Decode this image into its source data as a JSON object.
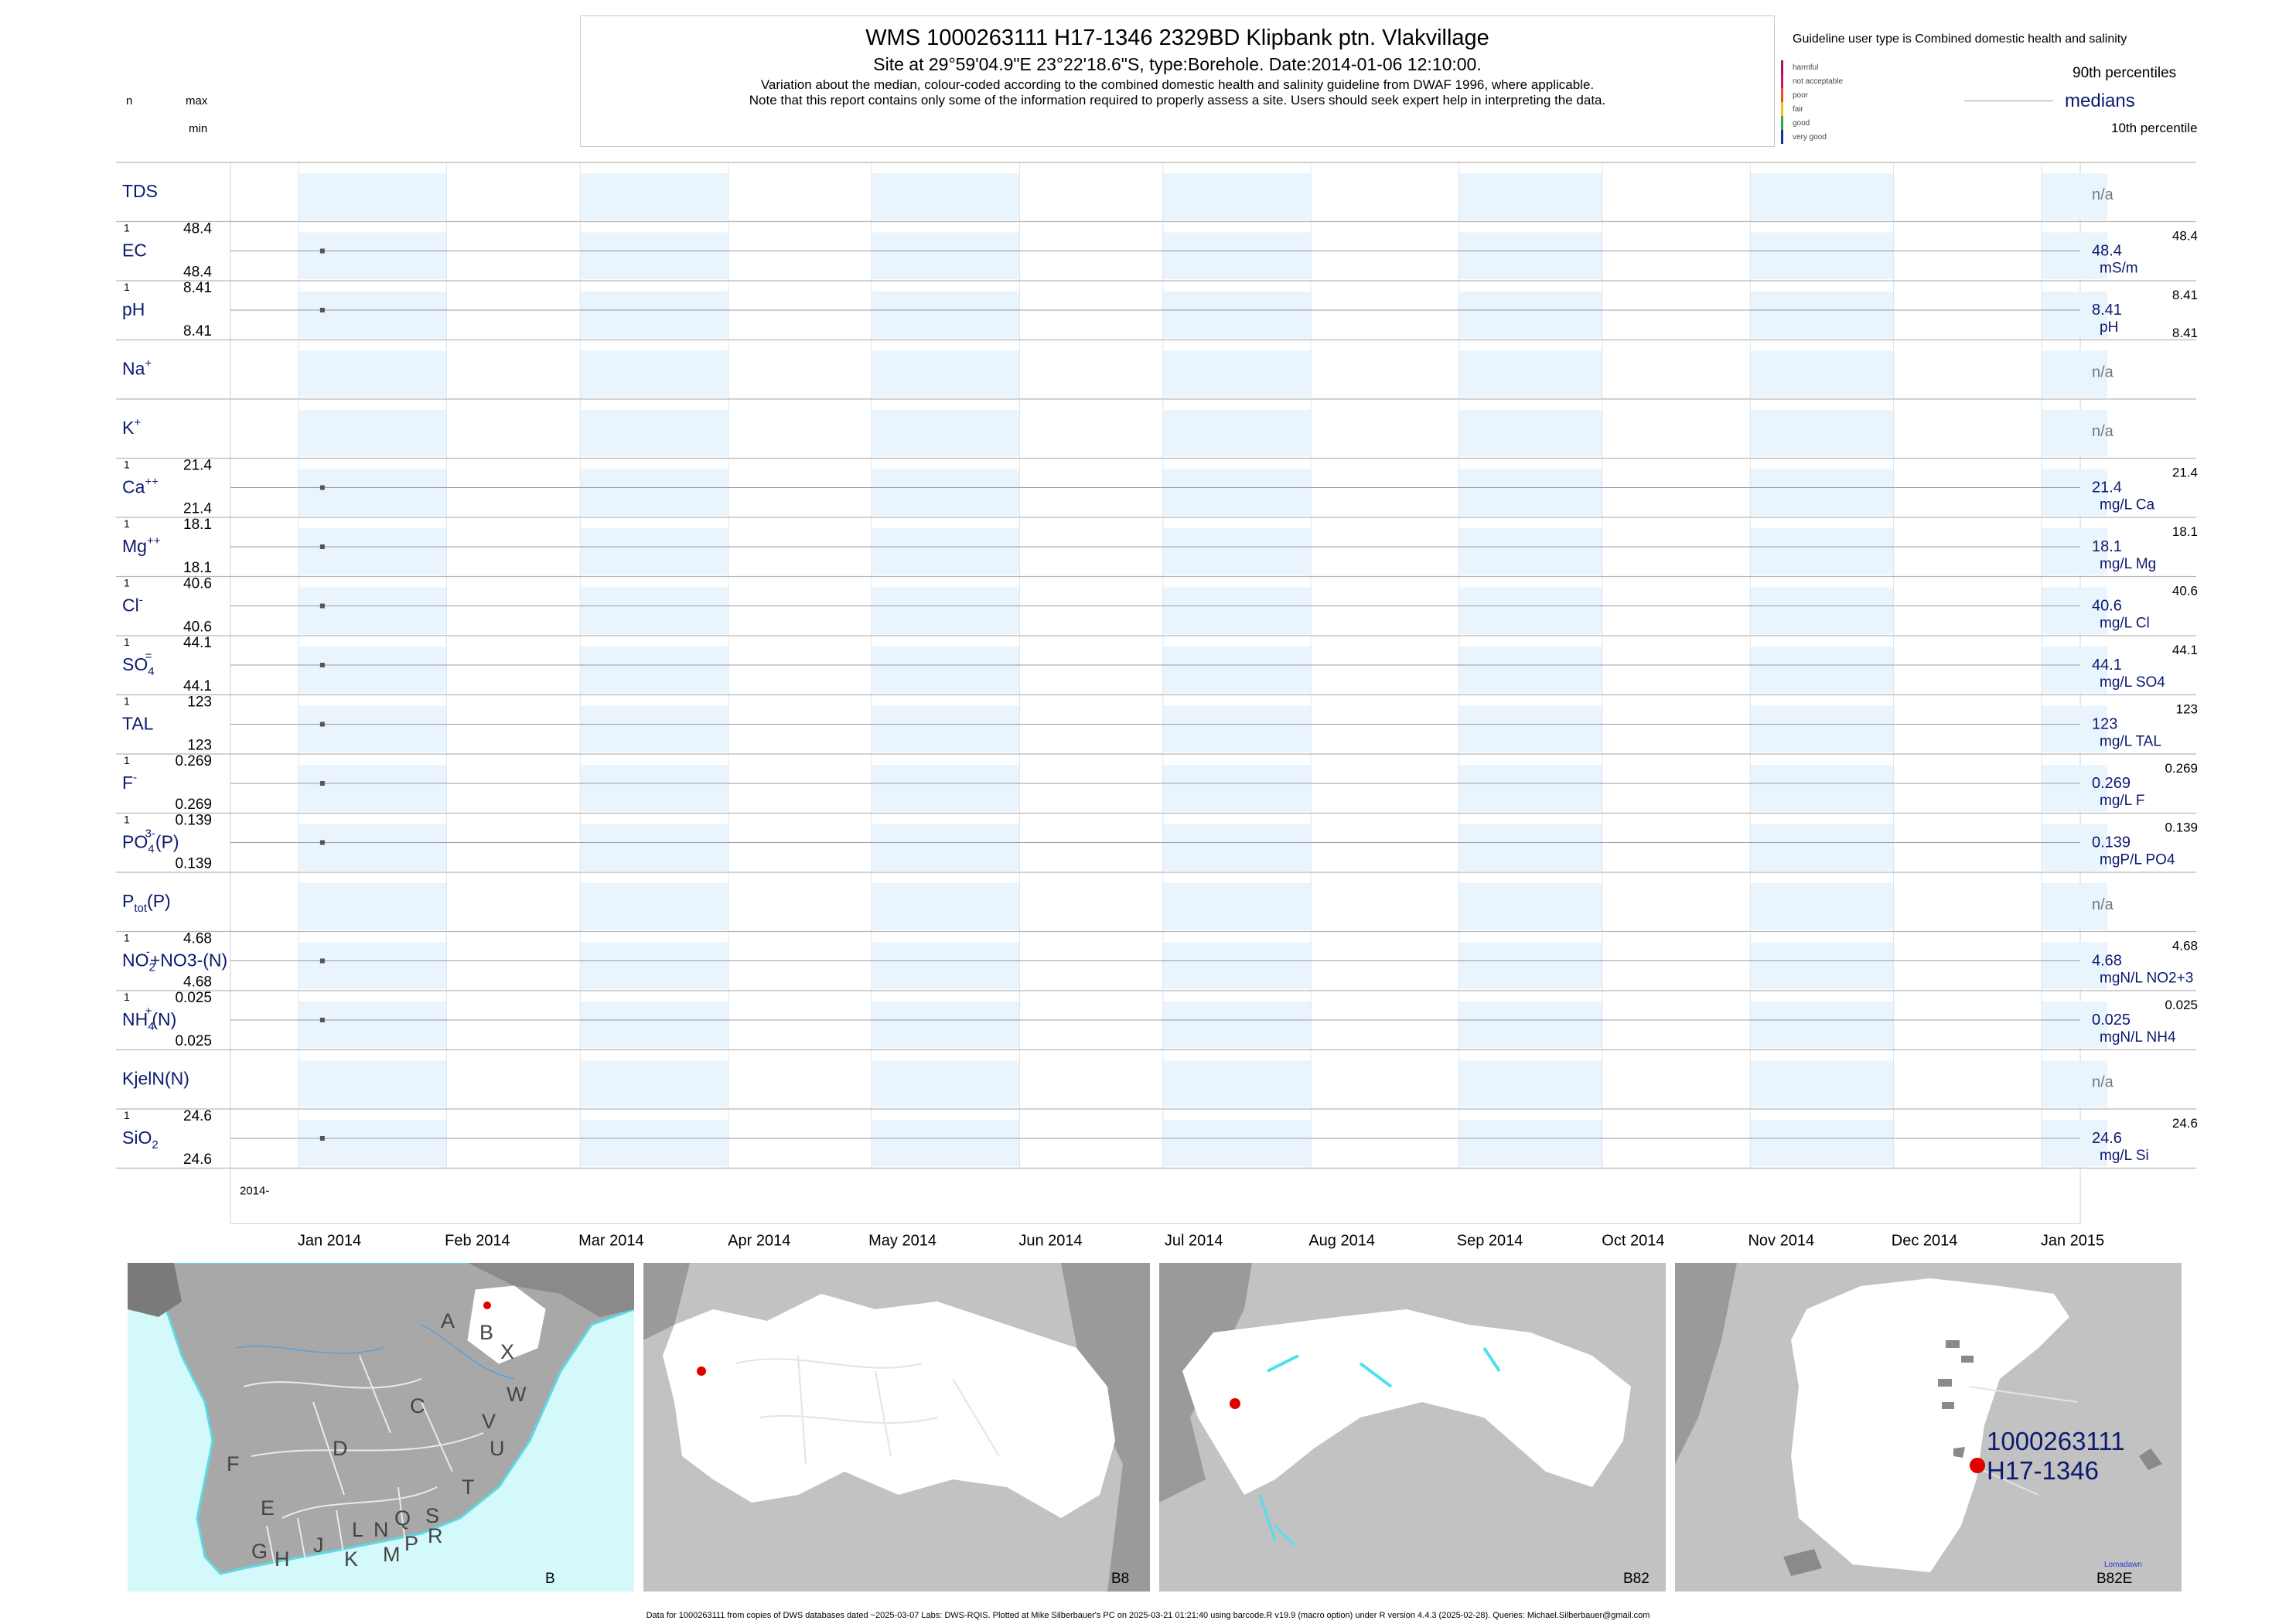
{
  "header": {
    "title": "WMS 1000263111 H17-1346 2329BD Klipbank ptn. Vlakvillage",
    "site": "Site at 29°59'04.9\"E 23°22'18.6\"S, type:Borehole. Date:2014-01-06 12:10:00.",
    "note1": "Variation about the median,  colour-coded according to the combined domestic health and salinity guideline from DWAF 1996, where applicable.",
    "note2": "Note that this report contains only some of the information required to properly assess a site. Users should seek expert help in interpreting the data."
  },
  "left_header": {
    "n": "n",
    "max": "max",
    "min": "min"
  },
  "guideline": {
    "title": "Guideline user type is Combined domestic health and salinity",
    "classes": [
      {
        "label": "harmful",
        "color": "#a0106e"
      },
      {
        "label": "not acceptable",
        "color": "#d4145a"
      },
      {
        "label": "poor",
        "color": "#e8502a"
      },
      {
        "label": "fair",
        "color": "#f2c21a"
      },
      {
        "label": "good",
        "color": "#2aa84a"
      },
      {
        "label": "very good",
        "color": "#1a2aa0"
      }
    ],
    "p90": "90th percentiles",
    "medians": "medians",
    "p10": "10th percentile"
  },
  "chart_data": {
    "type": "scatter",
    "x_range": [
      "2014-01-01",
      "2015-01-01"
    ],
    "x_tick_labels": [
      "Jan 2014",
      "Feb 2014",
      "Mar 2014",
      "Apr 2014",
      "May 2014",
      "Jun 2014",
      "Jul 2014",
      "Aug 2014",
      "Sep 2014",
      "Oct 2014",
      "Nov 2014",
      "Dec 2014",
      "Jan 2015"
    ],
    "year_label": "2014-",
    "grid": true,
    "na_text": "n/a",
    "sample_date": "2014-01-06",
    "rows": [
      {
        "name": "TDS",
        "sub": "",
        "sup": "",
        "tail": "",
        "n": "",
        "max": "",
        "min": "",
        "median": "",
        "unit": "",
        "p90": "",
        "p10": "",
        "na": true
      },
      {
        "name": "EC",
        "sub": "",
        "sup": "",
        "tail": "",
        "n": "1",
        "max": "48.4",
        "min": "48.4",
        "median": "48.4",
        "unit": "mS/m",
        "p90": "48.4",
        "p10": "",
        "na": false
      },
      {
        "name": "pH",
        "sub": "",
        "sup": "",
        "tail": "",
        "n": "1",
        "max": "8.41",
        "min": "8.41",
        "median": "8.41",
        "unit": "pH",
        "p90": "8.41",
        "p10": "8.41",
        "na": false
      },
      {
        "name": "Na",
        "sub": "",
        "sup": "+",
        "tail": "",
        "n": "",
        "max": "",
        "min": "",
        "median": "",
        "unit": "",
        "p90": "",
        "p10": "",
        "na": true
      },
      {
        "name": "K",
        "sub": "",
        "sup": "+",
        "tail": "",
        "n": "",
        "max": "",
        "min": "",
        "median": "",
        "unit": "",
        "p90": "",
        "p10": "",
        "na": true
      },
      {
        "name": "Ca",
        "sub": "",
        "sup": "++",
        "tail": "",
        "n": "1",
        "max": "21.4",
        "min": "21.4",
        "median": "21.4",
        "unit": "mg/L Ca",
        "p90": "21.4",
        "p10": "",
        "na": false
      },
      {
        "name": "Mg",
        "sub": "",
        "sup": "++",
        "tail": "",
        "n": "1",
        "max": "18.1",
        "min": "18.1",
        "median": "18.1",
        "unit": "mg/L Mg",
        "p90": "18.1",
        "p10": "",
        "na": false
      },
      {
        "name": "Cl",
        "sub": "",
        "sup": "-",
        "tail": "",
        "n": "1",
        "max": "40.6",
        "min": "40.6",
        "median": "40.6",
        "unit": "mg/L Cl",
        "p90": "40.6",
        "p10": "",
        "na": false
      },
      {
        "name": "SO",
        "sub": "4",
        "sup": "=",
        "tail": "",
        "n": "1",
        "max": "44.1",
        "min": "44.1",
        "median": "44.1",
        "unit": "mg/L SO4",
        "p90": "44.1",
        "p10": "",
        "na": false
      },
      {
        "name": "TAL",
        "sub": "",
        "sup": "",
        "tail": "",
        "n": "1",
        "max": "123",
        "min": "123",
        "median": "123",
        "unit": "mg/L TAL",
        "p90": "123",
        "p10": "",
        "na": false
      },
      {
        "name": "F",
        "sub": "",
        "sup": "-",
        "tail": "",
        "n": "1",
        "max": "0.269",
        "min": "0.269",
        "median": "0.269",
        "unit": "mg/L F",
        "p90": "0.269",
        "p10": "",
        "na": false
      },
      {
        "name": "PO",
        "sub": "4",
        "sup": "3-",
        "tail": "(P)",
        "n": "1",
        "max": "0.139",
        "min": "0.139",
        "median": "0.139",
        "unit": "mgP/L PO4",
        "p90": "0.139",
        "p10": "",
        "na": false
      },
      {
        "name": "P",
        "sub": "tot",
        "sup": "",
        "tail": "(P)",
        "n": "",
        "max": "",
        "min": "",
        "median": "",
        "unit": "",
        "p90": "",
        "p10": "",
        "na": true
      },
      {
        "name": "NO",
        "sub": "2",
        "sup": "-",
        "tail": "+NO3-(N)",
        "n": "1",
        "max": "4.68",
        "min": "4.68",
        "median": "4.68",
        "unit": "mgN/L NO2+3",
        "p90": "4.68",
        "p10": "",
        "na": false
      },
      {
        "name": "NH",
        "sub": "4",
        "sup": "+",
        "tail": "(N)",
        "n": "1",
        "max": "0.025",
        "min": "0.025",
        "median": "0.025",
        "unit": "mgN/L NH4",
        "p90": "0.025",
        "p10": "",
        "na": false
      },
      {
        "name": "KjelN(N)",
        "sub": "",
        "sup": "",
        "tail": "",
        "n": "",
        "max": "",
        "min": "",
        "median": "",
        "unit": "",
        "p90": "",
        "p10": "",
        "na": true
      },
      {
        "name": "SiO",
        "sub": "2",
        "sup": "",
        "tail": "",
        "n": "1",
        "max": "24.6",
        "min": "24.6",
        "median": "24.6",
        "unit": "mg/L Si",
        "p90": "24.6",
        "p10": "",
        "na": false
      }
    ]
  },
  "maps": {
    "overview_regions": [
      "A",
      "B",
      "X",
      "C",
      "W",
      "D",
      "V",
      "U",
      "F",
      "T",
      "E",
      "Q",
      "S",
      "L",
      "N",
      "R",
      "P",
      "J",
      "M",
      "G",
      "H",
      "K"
    ],
    "panel1_label": "B",
    "panel2_label": "B8",
    "panel3_label": "B82",
    "panel4_label": "B82E",
    "site_id": "1000263111",
    "site_code": "H17-1346",
    "town": "Lomadawn"
  },
  "footer": "Data for 1000263111 from copies of DWS databases dated ~2025-03-07 Labs: DWS-RQIS. Plotted at Mike Silberbauer's PC on 2025-03-21 01:21:40 using barcode.R v19.9 (macro option) under R version 4.4.3 (2025-02-28). Queries: Michael.Silberbauer@gmail.com"
}
